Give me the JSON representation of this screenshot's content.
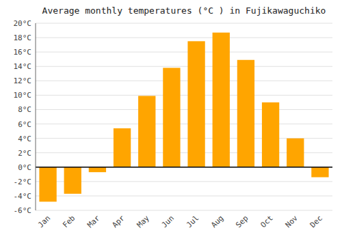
{
  "chart_data": {
    "type": "bar",
    "title": "Average monthly temperatures (°C ) in Fujikawaguchiko",
    "categories": [
      "Jan",
      "Feb",
      "Mar",
      "Apr",
      "May",
      "Jun",
      "Jul",
      "Aug",
      "Sep",
      "Oct",
      "Nov",
      "Dec"
    ],
    "values": [
      -4.8,
      -3.7,
      -0.7,
      5.4,
      9.9,
      13.8,
      17.5,
      18.7,
      14.9,
      9.0,
      4.0,
      -1.4
    ],
    "color": "#FFA500",
    "ylim": [
      -6,
      20
    ],
    "yticks": [
      {
        "value": -6,
        "label": "-6°C"
      },
      {
        "value": -4,
        "label": "-4°C"
      },
      {
        "value": -2,
        "label": "-2°C"
      },
      {
        "value": 0,
        "label": "0°C"
      },
      {
        "value": 2,
        "label": "2°C"
      },
      {
        "value": 4,
        "label": "4°C"
      },
      {
        "value": 6,
        "label": "6°C"
      },
      {
        "value": 8,
        "label": "8°C"
      },
      {
        "value": 10,
        "label": "10°C"
      },
      {
        "value": 12,
        "label": "12°C"
      },
      {
        "value": 14,
        "label": "14°C"
      },
      {
        "value": 16,
        "label": "16°C"
      },
      {
        "value": 18,
        "label": "18°C"
      },
      {
        "value": 20,
        "label": "20°C"
      }
    ],
    "grid": true
  }
}
